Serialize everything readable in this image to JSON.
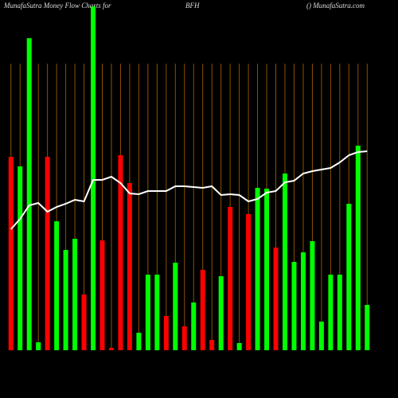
{
  "chart_data": {
    "type": "bar",
    "title": "MunafaSutra  Money Flow  Charts for",
    "subtitle": "BFH",
    "source": "() MunafaSutra.com",
    "categories": [
      null,
      null,
      null,
      null,
      null,
      null,
      null,
      null,
      null,
      null,
      null,
      null,
      null,
      null,
      null,
      null,
      null,
      null,
      null,
      null,
      null,
      null,
      null,
      null,
      null,
      null,
      null,
      null,
      null,
      null,
      null,
      null,
      null,
      null,
      null,
      null,
      null,
      null,
      null,
      null
    ],
    "values": [
      243,
      231,
      392,
      10,
      243,
      162,
      126,
      140,
      70,
      432,
      138,
      3,
      245,
      210,
      22,
      95,
      95,
      43,
      110,
      30,
      60,
      101,
      13,
      93,
      180,
      9,
      171,
      204,
      203,
      129,
      222,
      111,
      123,
      137,
      36,
      95,
      95,
      184,
      257,
      57
    ],
    "bar_colors": [
      "#ff0000",
      "#00ff00",
      "#00ff00",
      "#00ff00",
      "#ff0000",
      "#00ff00",
      "#00ff00",
      "#00ff00",
      "#ff0000",
      "#00ff00",
      "#ff0000",
      "#ff0000",
      "#ff0000",
      "#ff0000",
      "#00ff00",
      "#00ff00",
      "#00ff00",
      "#ff0000",
      "#00ff00",
      "#ff0000",
      "#00ff00",
      "#ff0000",
      "#ff0000",
      "#00ff00",
      "#ff0000",
      "#00ff00",
      "#ff0000",
      "#00ff00",
      "#00ff00",
      "#ff0000",
      "#00ff00",
      "#00ff00",
      "#00ff00",
      "#00ff00",
      "#00ff00",
      "#00ff00",
      "#00ff00",
      "#00ff00",
      "#00ff00",
      "#00ff00"
    ],
    "line_values": [
      152,
      165,
      182,
      185,
      174,
      180,
      184,
      189,
      187,
      214,
      214,
      218,
      210,
      197,
      196,
      200,
      200,
      200,
      206,
      206,
      205,
      204,
      206,
      195,
      196,
      195,
      187,
      190,
      198,
      200,
      211,
      213,
      222,
      225,
      227,
      229,
      236,
      245,
      249,
      250
    ],
    "line_color": "#ffffff",
    "ylim": [
      0,
      440
    ],
    "grid": true,
    "grid_color": "#8a5200"
  }
}
